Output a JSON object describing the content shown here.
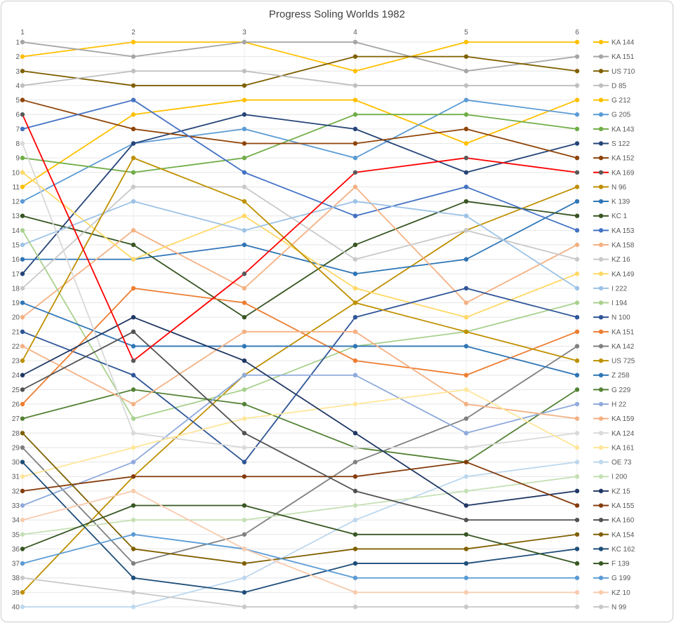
{
  "chart_data": {
    "type": "line",
    "subtype": "bump-rank-chart",
    "title": "Progress Soling Worlds 1982",
    "xlabel": "",
    "ylabel": "",
    "x_ticks": [
      1,
      2,
      3,
      4,
      5,
      6
    ],
    "y_ticks": [
      1,
      2,
      3,
      4,
      5,
      6,
      7,
      8,
      9,
      10,
      11,
      12,
      13,
      14,
      15,
      16,
      17,
      18,
      19,
      20,
      21,
      22,
      23,
      24,
      25,
      26,
      27,
      28,
      29,
      30,
      31,
      32,
      33,
      34,
      35,
      36,
      37,
      38,
      39,
      40
    ],
    "ylim": [
      1,
      40
    ],
    "y_inverted": true,
    "grid": "on",
    "legend_position": "right",
    "axis_text_color": "#595959",
    "title_color": "#404040",
    "grid_color": "#E6E6E6",
    "vgrid_color": "#EDEDED",
    "border_color": "#D9D9D9",
    "categories": [
      1,
      2,
      3,
      4,
      5,
      6
    ],
    "series": [
      {
        "name": "KA 144",
        "color": "#FFC000",
        "ranks": [
          2,
          1,
          1,
          3,
          1,
          1
        ]
      },
      {
        "name": "KA 151",
        "color": "#A5A5A5",
        "ranks": [
          1,
          2,
          1,
          1,
          3,
          2
        ]
      },
      {
        "name": "US 710",
        "color": "#7F6000",
        "ranks": [
          3,
          4,
          4,
          2,
          2,
          3
        ]
      },
      {
        "name": "D 85",
        "color": "#BFBFBF",
        "ranks": [
          4,
          3,
          3,
          4,
          4,
          4
        ]
      },
      {
        "name": "G 212",
        "color": "#FFC000",
        "ranks": [
          11,
          6,
          5,
          5,
          8,
          5
        ]
      },
      {
        "name": "G 205",
        "color": "#5B9BD5",
        "ranks": [
          12,
          8,
          7,
          9,
          5,
          6
        ]
      },
      {
        "name": "KA 143",
        "color": "#70AD47",
        "ranks": [
          9,
          10,
          9,
          6,
          6,
          7
        ]
      },
      {
        "name": "S 122",
        "color": "#264478",
        "ranks": [
          17,
          8,
          6,
          7,
          10,
          8
        ]
      },
      {
        "name": "KA 152",
        "color": "#8F4408",
        "ranks": [
          5,
          7,
          8,
          8,
          7,
          9
        ]
      },
      {
        "name": "KA 169",
        "color": "#FF0000",
        "marker_color": "#595959",
        "ranks": [
          6,
          23,
          17,
          10,
          9,
          10
        ]
      },
      {
        "name": "N 96",
        "color": "#BF8F00",
        "ranks": [
          39,
          31,
          24,
          19,
          14,
          11
        ]
      },
      {
        "name": "K 139",
        "color": "#2E75B6",
        "ranks": [
          16,
          16,
          15,
          17,
          16,
          12
        ]
      },
      {
        "name": "KC 1",
        "color": "#375623",
        "ranks": [
          13,
          15,
          20,
          15,
          12,
          13
        ]
      },
      {
        "name": "KA 153",
        "color": "#4472C4",
        "ranks": [
          7,
          5,
          10,
          13,
          11,
          14
        ]
      },
      {
        "name": "KA 158",
        "color": "#F4B183",
        "ranks": [
          20,
          14,
          18,
          11,
          19,
          15
        ]
      },
      {
        "name": "KZ 16",
        "color": "#C9C9C9",
        "ranks": [
          18,
          11,
          11,
          16,
          14,
          16
        ]
      },
      {
        "name": "KA 149",
        "color": "#FFD966",
        "ranks": [
          10,
          16,
          13,
          18,
          20,
          17
        ]
      },
      {
        "name": "I 222",
        "color": "#9DC3E6",
        "ranks": [
          15,
          12,
          14,
          12,
          13,
          18
        ]
      },
      {
        "name": "I 194",
        "color": "#A9D18E",
        "ranks": [
          14,
          27,
          25,
          22,
          21,
          19
        ]
      },
      {
        "name": "N 100",
        "color": "#2F5597",
        "ranks": [
          21,
          24,
          30,
          20,
          18,
          20
        ]
      },
      {
        "name": "KA 151",
        "color": "#ED7D31",
        "ranks": [
          26,
          18,
          19,
          23,
          24,
          21
        ]
      },
      {
        "name": "KA 142",
        "color": "#808080",
        "ranks": [
          29,
          37,
          35,
          30,
          27,
          22
        ]
      },
      {
        "name": "US 725",
        "color": "#BF9000",
        "ranks": [
          23,
          9,
          12,
          19,
          21,
          23
        ]
      },
      {
        "name": "Z 258",
        "color": "#2E75B6",
        "ranks": [
          19,
          22,
          22,
          22,
          22,
          24
        ]
      },
      {
        "name": "G 229",
        "color": "#548235",
        "ranks": [
          27,
          25,
          26,
          29,
          30,
          25
        ]
      },
      {
        "name": "H 22",
        "color": "#8FAADC",
        "ranks": [
          33,
          30,
          24,
          24,
          28,
          26
        ]
      },
      {
        "name": "KA 159",
        "color": "#F4B183",
        "ranks": [
          22,
          26,
          21,
          21,
          26,
          27
        ]
      },
      {
        "name": "KA 124",
        "color": "#D9D9D9",
        "ranks": [
          8,
          28,
          29,
          29,
          29,
          28
        ]
      },
      {
        "name": "KA 161",
        "color": "#FFE699",
        "ranks": [
          31,
          29,
          27,
          26,
          25,
          29
        ]
      },
      {
        "name": "OE 73",
        "color": "#BDD7EE",
        "ranks": [
          40,
          40,
          38,
          34,
          31,
          30
        ]
      },
      {
        "name": "I 200",
        "color": "#C5E0B4",
        "ranks": [
          35,
          34,
          34,
          33,
          32,
          31
        ]
      },
      {
        "name": "KZ 15",
        "color": "#203864",
        "ranks": [
          24,
          20,
          23,
          28,
          33,
          32
        ]
      },
      {
        "name": "KA 155",
        "color": "#843C0C",
        "ranks": [
          32,
          31,
          31,
          31,
          30,
          33
        ]
      },
      {
        "name": "KA 160",
        "color": "#525252",
        "ranks": [
          25,
          21,
          28,
          32,
          34,
          34
        ]
      },
      {
        "name": "KA 154",
        "color": "#7F6000",
        "ranks": [
          28,
          36,
          37,
          36,
          36,
          35
        ]
      },
      {
        "name": "KC 162",
        "color": "#1F4E79",
        "ranks": [
          30,
          38,
          39,
          37,
          37,
          36
        ]
      },
      {
        "name": "F 139",
        "color": "#385723",
        "ranks": [
          36,
          33,
          33,
          35,
          35,
          37
        ]
      },
      {
        "name": "G 199",
        "color": "#5B9BD5",
        "ranks": [
          37,
          35,
          36,
          38,
          38,
          38
        ]
      },
      {
        "name": "KZ 10",
        "color": "#F8CBAD",
        "ranks": [
          34,
          32,
          36,
          39,
          39,
          39
        ]
      },
      {
        "name": "N 99",
        "color": "#C8C8C8",
        "ranks": [
          38,
          39,
          40,
          40,
          40,
          40
        ]
      }
    ]
  }
}
